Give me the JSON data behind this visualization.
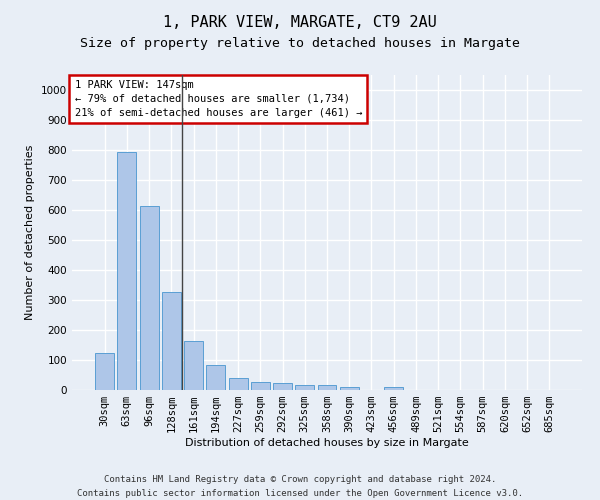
{
  "title": "1, PARK VIEW, MARGATE, CT9 2AU",
  "subtitle": "Size of property relative to detached houses in Margate",
  "xlabel": "Distribution of detached houses by size in Margate",
  "ylabel": "Number of detached properties",
  "categories": [
    "30sqm",
    "63sqm",
    "96sqm",
    "128sqm",
    "161sqm",
    "194sqm",
    "227sqm",
    "259sqm",
    "292sqm",
    "325sqm",
    "358sqm",
    "390sqm",
    "423sqm",
    "456sqm",
    "489sqm",
    "521sqm",
    "554sqm",
    "587sqm",
    "620sqm",
    "652sqm",
    "685sqm"
  ],
  "values": [
    125,
    795,
    615,
    328,
    162,
    82,
    40,
    27,
    22,
    16,
    16,
    9,
    0,
    10,
    0,
    0,
    0,
    0,
    0,
    0,
    0
  ],
  "bar_color": "#aec6e8",
  "bar_edge_color": "#5a9fd4",
  "property_bin_index": 3,
  "vline_color": "#444444",
  "annotation_text": "1 PARK VIEW: 147sqm\n← 79% of detached houses are smaller (1,734)\n21% of semi-detached houses are larger (461) →",
  "annotation_box_color": "#ffffff",
  "annotation_box_edge_color": "#cc0000",
  "ylim": [
    0,
    1050
  ],
  "yticks": [
    0,
    100,
    200,
    300,
    400,
    500,
    600,
    700,
    800,
    900,
    1000
  ],
  "footer_line1": "Contains HM Land Registry data © Crown copyright and database right 2024.",
  "footer_line2": "Contains public sector information licensed under the Open Government Licence v3.0.",
  "background_color": "#e8eef6",
  "plot_bg_color": "#e8eef6",
  "grid_color": "#ffffff",
  "title_fontsize": 11,
  "subtitle_fontsize": 9.5,
  "axis_label_fontsize": 8,
  "tick_fontsize": 7.5,
  "annotation_fontsize": 7.5,
  "footer_fontsize": 6.5
}
